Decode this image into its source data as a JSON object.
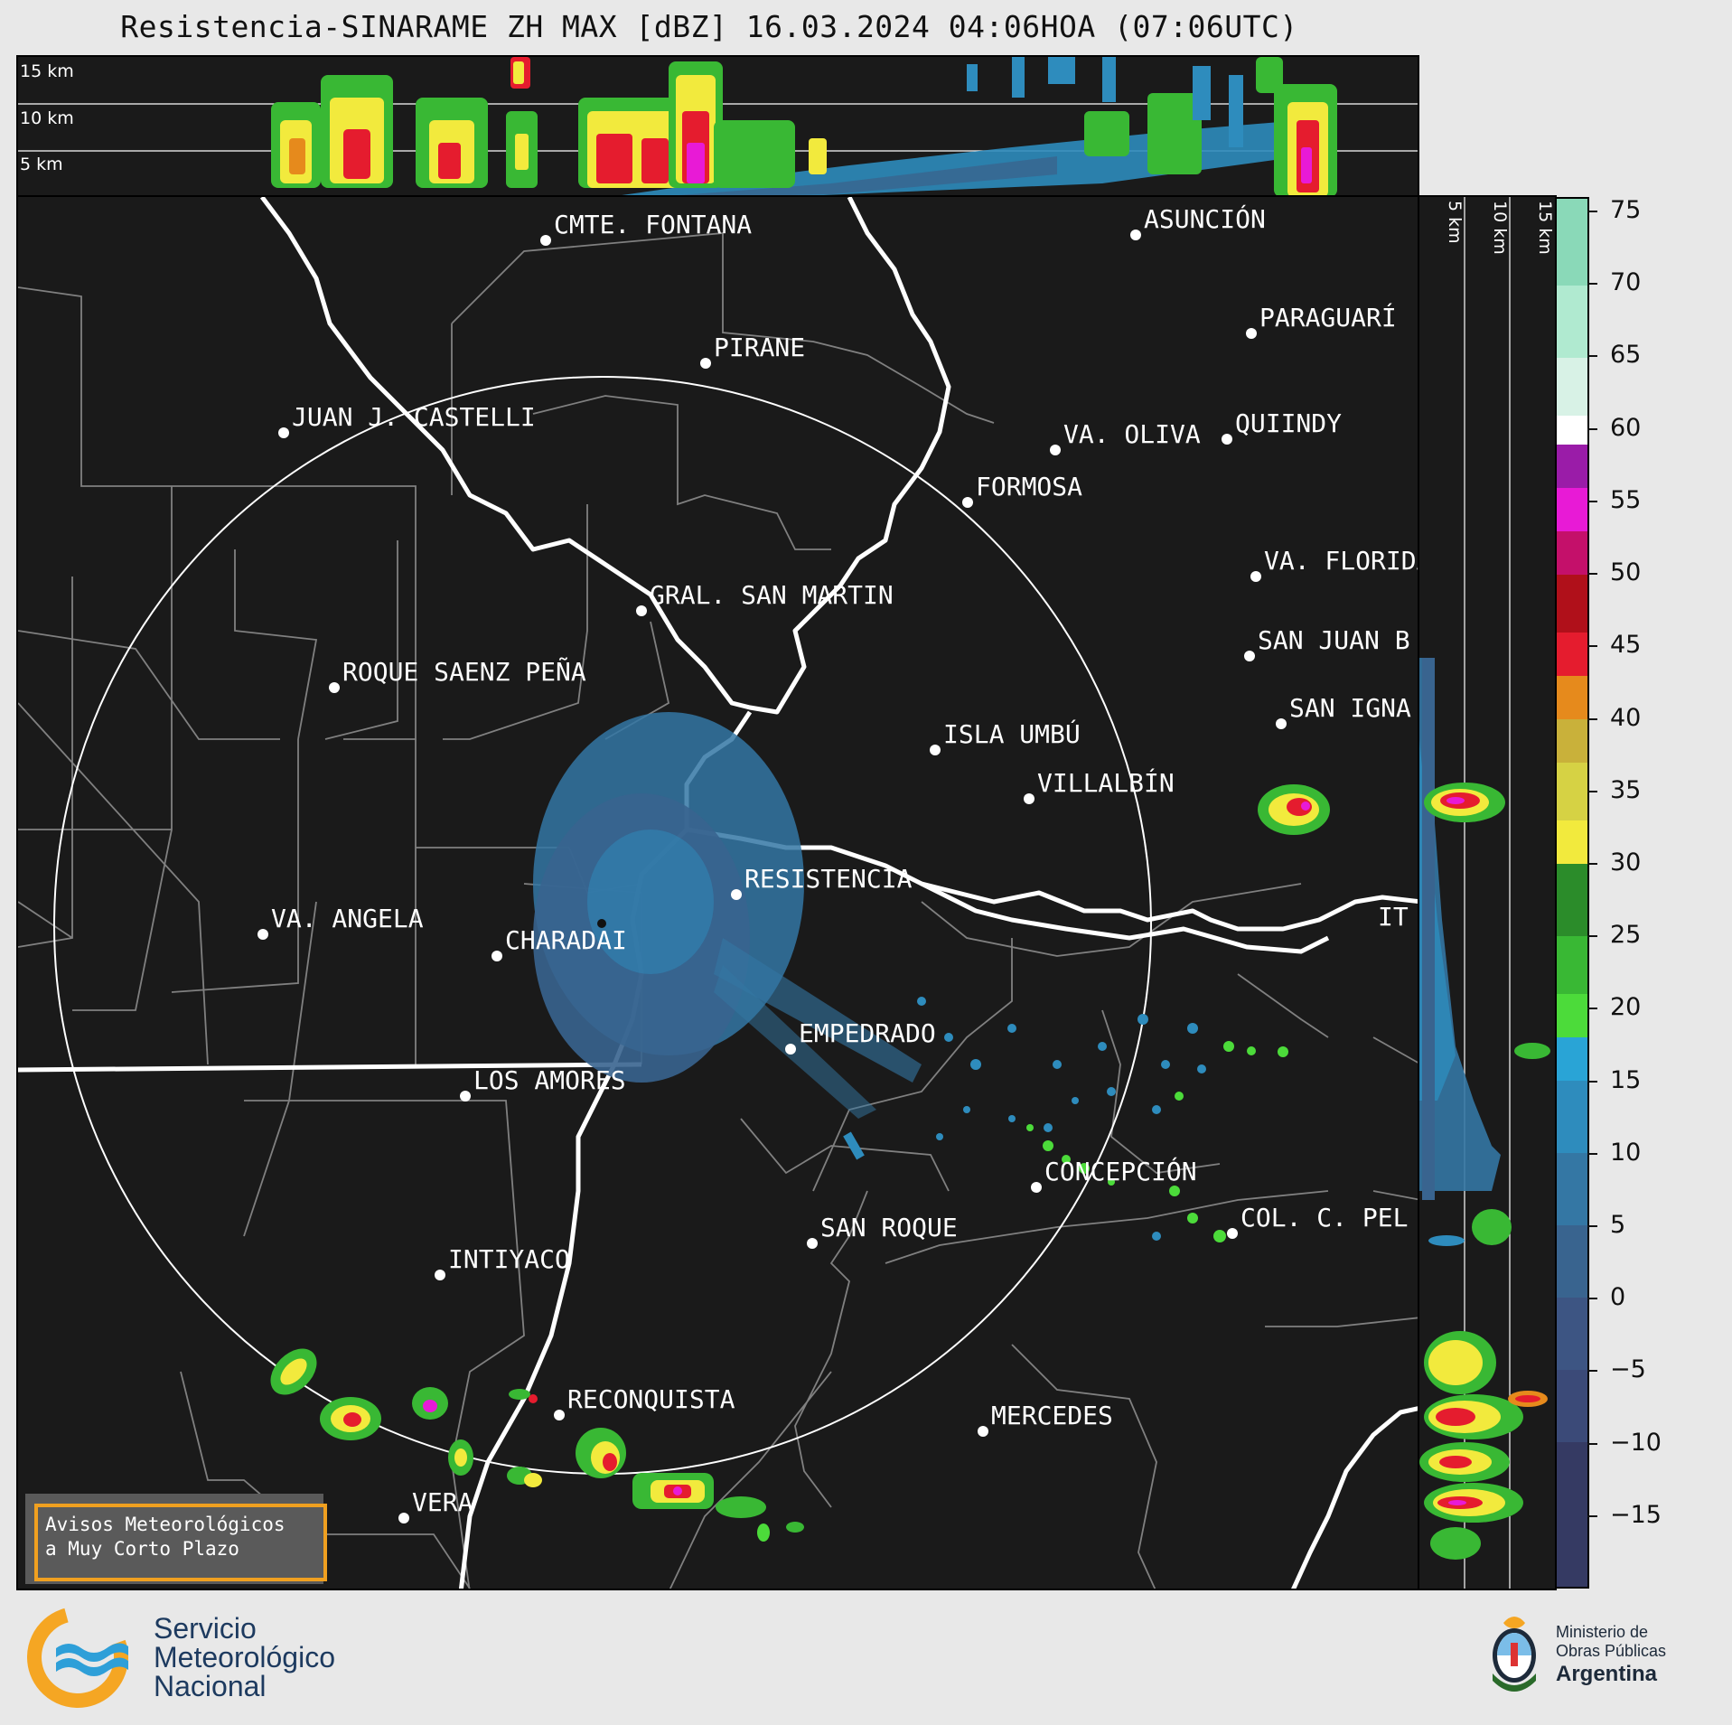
{
  "title": "Resistencia-SINARAME ZH MAX [dBZ] 16.03.2024 04:06HOA (07:06UTC)",
  "top_profile": {
    "height_labels": [
      "15 km",
      "10 km",
      "5 km"
    ]
  },
  "side_profile": {
    "height_labels": [
      "5 km",
      "10 km",
      "15 km"
    ]
  },
  "map": {
    "cities": [
      {
        "name": "CMTE. FONTANA"
      },
      {
        "name": "ASUNCIÓN"
      },
      {
        "name": "PARAGUARÍ"
      },
      {
        "name": "PIRANE"
      },
      {
        "name": "JUAN J. CASTELLI"
      },
      {
        "name": "VA. OLIVA"
      },
      {
        "name": "QUIINDY"
      },
      {
        "name": "FORMOSA"
      },
      {
        "name": "VA. FLORIDA"
      },
      {
        "name": "GRAL. SAN MARTIN"
      },
      {
        "name": "SAN JUAN B"
      },
      {
        "name": "ROQUE SAENZ PEÑA"
      },
      {
        "name": "SAN IGNA"
      },
      {
        "name": "ISLA UMBÚ"
      },
      {
        "name": "VILLALBÍN"
      },
      {
        "name": "RESISTENCIA"
      },
      {
        "name": "VA. ANGELA"
      },
      {
        "name": "CHARADAI"
      },
      {
        "name": "IT"
      },
      {
        "name": "EMPEDRADO"
      },
      {
        "name": "LOS AMORES"
      },
      {
        "name": "CONCEPCIÓN"
      },
      {
        "name": "SAN ROQUE"
      },
      {
        "name": "COL. C. PEL"
      },
      {
        "name": "INTIYACO"
      },
      {
        "name": "RECONQUISTA"
      },
      {
        "name": "MERCEDES"
      },
      {
        "name": "VERA"
      }
    ]
  },
  "colorbar": {
    "unit": "dBZ",
    "ticks": [
      "75",
      "70",
      "65",
      "60",
      "55",
      "50",
      "45",
      "40",
      "35",
      "30",
      "25",
      "20",
      "15",
      "10",
      "5",
      "0",
      "−5",
      "−10",
      "−15"
    ],
    "tick_values": [
      75,
      70,
      65,
      60,
      55,
      50,
      45,
      40,
      35,
      30,
      25,
      20,
      15,
      10,
      5,
      0,
      -5,
      -10,
      -15
    ],
    "range": [
      -20,
      76
    ],
    "bands": [
      {
        "from": -20,
        "to": -10,
        "color": "#353a63"
      },
      {
        "from": -10,
        "to": -5,
        "color": "#3b4a78"
      },
      {
        "from": -5,
        "to": 0,
        "color": "#3d5583"
      },
      {
        "from": 0,
        "to": 5,
        "color": "#39648f"
      },
      {
        "from": 5,
        "to": 10,
        "color": "#3477a4"
      },
      {
        "from": 10,
        "to": 15,
        "color": "#2e8cbd"
      },
      {
        "from": 15,
        "to": 18,
        "color": "#29a4d6"
      },
      {
        "from": 18,
        "to": 21,
        "color": "#4cdb3a"
      },
      {
        "from": 21,
        "to": 25,
        "color": "#39b834"
      },
      {
        "from": 25,
        "to": 30,
        "color": "#2b8c2a"
      },
      {
        "from": 30,
        "to": 33,
        "color": "#f2ea3d"
      },
      {
        "from": 33,
        "to": 37,
        "color": "#d6d244"
      },
      {
        "from": 37,
        "to": 40,
        "color": "#c9b13a"
      },
      {
        "from": 40,
        "to": 43,
        "color": "#e68a1c"
      },
      {
        "from": 43,
        "to": 46,
        "color": "#e51c2e"
      },
      {
        "from": 46,
        "to": 50,
        "color": "#b0101a"
      },
      {
        "from": 50,
        "to": 53,
        "color": "#c4106a"
      },
      {
        "from": 53,
        "to": 56,
        "color": "#e81ad6"
      },
      {
        "from": 56,
        "to": 59,
        "color": "#9a1ca8"
      },
      {
        "from": 59,
        "to": 61,
        "color": "#ffffff"
      },
      {
        "from": 61,
        "to": 65,
        "color": "#d8f2e6"
      },
      {
        "from": 65,
        "to": 70,
        "color": "#b0ead0"
      },
      {
        "from": 70,
        "to": 76,
        "color": "#8ad9b8"
      }
    ]
  },
  "avisos": {
    "line1": "Avisos Meteorológicos",
    "line2": "a Muy Corto Plazo"
  },
  "footer": {
    "smn_line1": "Servicio",
    "smn_line2": "Meteorológico",
    "smn_line3": "Nacional",
    "ministry_line1": "Ministerio de",
    "ministry_line2": "Obras Públicas",
    "ministry_line3": "Argentina"
  },
  "colors": {
    "background": "#e8e8e8",
    "map_background": "#1a1a1a",
    "border_lines": "#808080",
    "rivers": "#ffffff",
    "brand_blue": "#2e9fd8",
    "brand_orange": "#f5a623"
  }
}
